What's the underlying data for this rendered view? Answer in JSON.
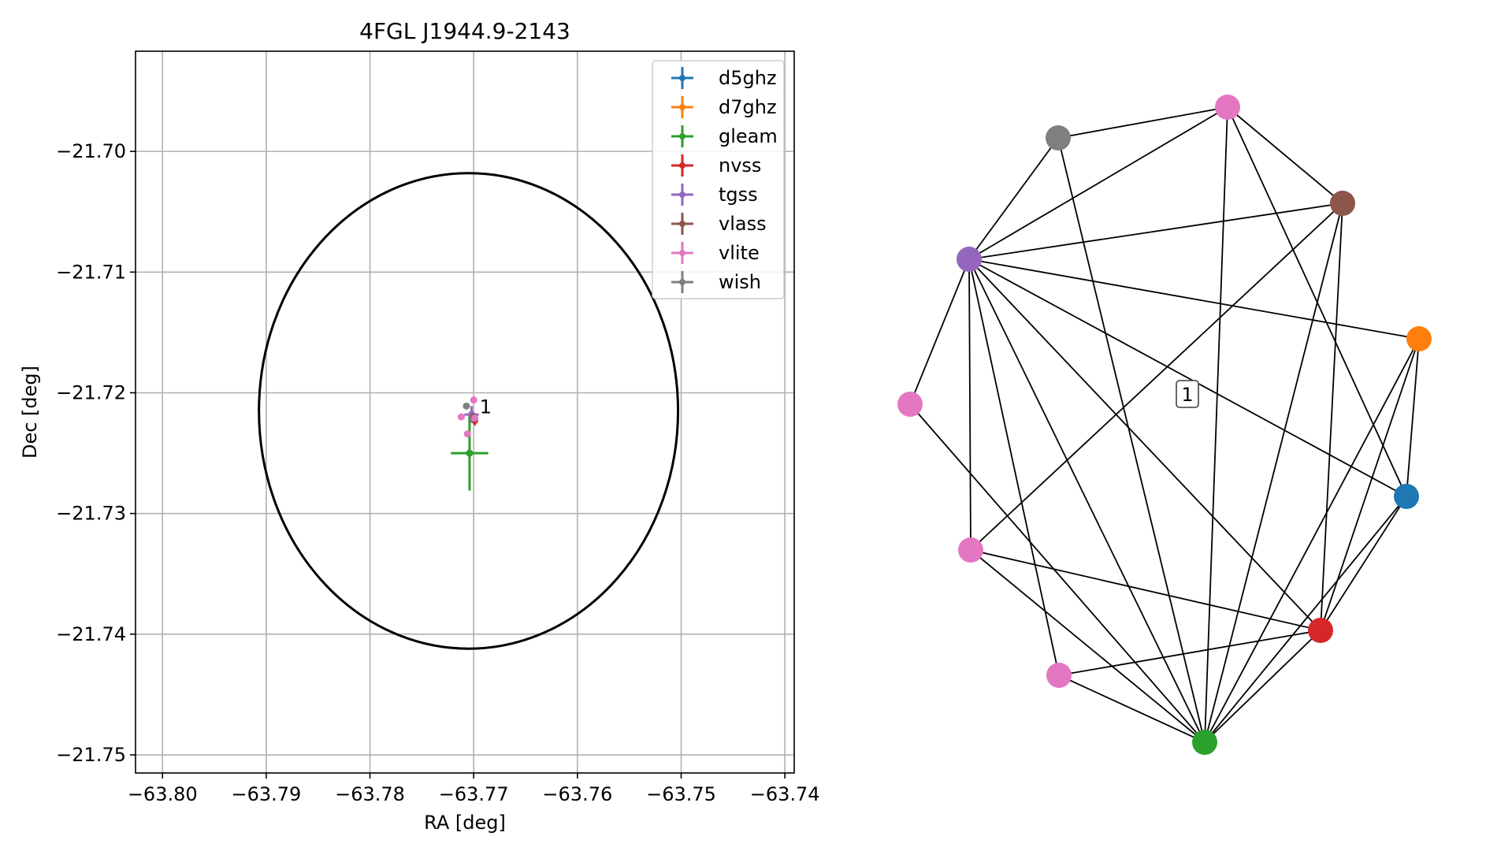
{
  "chart_data": [
    {
      "type": "scatter",
      "title": "4FGL J1944.9-2143",
      "xlabel": "RA [deg]",
      "ylabel": "Dec [deg]",
      "xlim": [
        -63.8026,
        -63.7391
      ],
      "ylim": [
        -21.7515,
        -21.6917
      ],
      "xticks": [
        -63.8,
        -63.79,
        -63.78,
        -63.77,
        -63.76,
        -63.75,
        -63.74
      ],
      "xtick_labels": [
        "−63.80",
        "−63.79",
        "−63.78",
        "−63.77",
        "−63.76",
        "−63.75",
        "−63.74"
      ],
      "yticks": [
        -21.7,
        -21.71,
        -21.72,
        -21.73,
        -21.74,
        -21.75
      ],
      "ytick_labels": [
        "−21.70",
        "−21.71",
        "−21.72",
        "−21.73",
        "−21.74",
        "−21.75"
      ],
      "grid": true,
      "legend_position": "top-right",
      "ellipse": {
        "center": [
          -63.7705,
          -21.7215
        ],
        "ra_half_width": 0.0202,
        "dec_half_height": 0.0197,
        "color": "#000000"
      },
      "annotation": {
        "text": "1",
        "x": -63.7695,
        "y": -21.7211
      },
      "series": [
        {
          "name": "d5ghz",
          "color": "#1f77b4",
          "points": [
            {
              "x": -63.7701,
              "y": -21.7219,
              "xerr": 0.00015,
              "yerr": 0.00015
            }
          ]
        },
        {
          "name": "d7ghz",
          "color": "#ff7f0e",
          "points": [
            {
              "x": -63.7701,
              "y": -21.7219,
              "xerr": 0.00015,
              "yerr": 0.00015
            }
          ]
        },
        {
          "name": "gleam",
          "color": "#2ca02c",
          "points": [
            {
              "x": -63.7704,
              "y": -21.725,
              "xerr": 0.0018,
              "yerr": 0.0031
            }
          ]
        },
        {
          "name": "nvss",
          "color": "#d62728",
          "points": [
            {
              "x": -63.7699,
              "y": -21.7223,
              "xerr": 0.0003,
              "yerr": 0.0004
            }
          ]
        },
        {
          "name": "tgss",
          "color": "#9467bd",
          "points": [
            {
              "x": -63.7702,
              "y": -21.7218,
              "xerr": 0.0007,
              "yerr": 0.0007
            }
          ]
        },
        {
          "name": "vlass",
          "color": "#8c564b",
          "points": [
            {
              "x": -63.77,
              "y": -21.722,
              "xerr": 0.0001,
              "yerr": 0.0001
            }
          ]
        },
        {
          "name": "vlite",
          "color": "#e377c2",
          "points": [
            {
              "x": -63.77,
              "y": -21.7206,
              "xerr": 0.0001,
              "yerr": 0.0001
            },
            {
              "x": -63.7712,
              "y": -21.722,
              "xerr": 0.0001,
              "yerr": 0.0001
            },
            {
              "x": -63.7699,
              "y": -21.7221,
              "xerr": 0.0001,
              "yerr": 0.0001
            },
            {
              "x": -63.7706,
              "y": -21.7234,
              "xerr": 0.0001,
              "yerr": 0.0001
            }
          ]
        },
        {
          "name": "wish",
          "color": "#7f7f7f",
          "points": [
            {
              "x": -63.7707,
              "y": -21.7211,
              "xerr": 0.0001,
              "yerr": 0.0001
            }
          ]
        }
      ]
    },
    {
      "type": "network",
      "label": "1",
      "nodes": [
        {
          "id": "pink-top",
          "color": "#e377c2"
        },
        {
          "id": "gray",
          "color": "#7f7f7f"
        },
        {
          "id": "brown",
          "color": "#8c564b"
        },
        {
          "id": "purple",
          "color": "#9467bd"
        },
        {
          "id": "orange",
          "color": "#ff7f0e"
        },
        {
          "id": "pink-left",
          "color": "#e377c2"
        },
        {
          "id": "blue",
          "color": "#1f77b4"
        },
        {
          "id": "pink-lower-left",
          "color": "#e377c2"
        },
        {
          "id": "red",
          "color": "#d62728"
        },
        {
          "id": "pink-bottom-left",
          "color": "#e377c2"
        },
        {
          "id": "green",
          "color": "#2ca02c"
        }
      ],
      "edges": [
        [
          "purple",
          "gray"
        ],
        [
          "purple",
          "pink-top"
        ],
        [
          "purple",
          "brown"
        ],
        [
          "purple",
          "orange"
        ],
        [
          "purple",
          "blue"
        ],
        [
          "purple",
          "red"
        ],
        [
          "purple",
          "green"
        ],
        [
          "purple",
          "pink-left"
        ],
        [
          "purple",
          "pink-lower-left"
        ],
        [
          "purple",
          "pink-bottom-left"
        ],
        [
          "gray",
          "pink-top"
        ],
        [
          "gray",
          "green"
        ],
        [
          "pink-top",
          "brown"
        ],
        [
          "pink-top",
          "blue"
        ],
        [
          "pink-top",
          "green"
        ],
        [
          "brown",
          "pink-lower-left"
        ],
        [
          "brown",
          "green"
        ],
        [
          "brown",
          "red"
        ],
        [
          "orange",
          "blue"
        ],
        [
          "orange",
          "red"
        ],
        [
          "orange",
          "green"
        ],
        [
          "blue",
          "green"
        ],
        [
          "blue",
          "red"
        ],
        [
          "pink-left",
          "green"
        ],
        [
          "pink-lower-left",
          "red"
        ],
        [
          "pink-lower-left",
          "green"
        ],
        [
          "red",
          "pink-bottom-left"
        ],
        [
          "red",
          "green"
        ],
        [
          "pink-bottom-left",
          "green"
        ]
      ]
    }
  ]
}
